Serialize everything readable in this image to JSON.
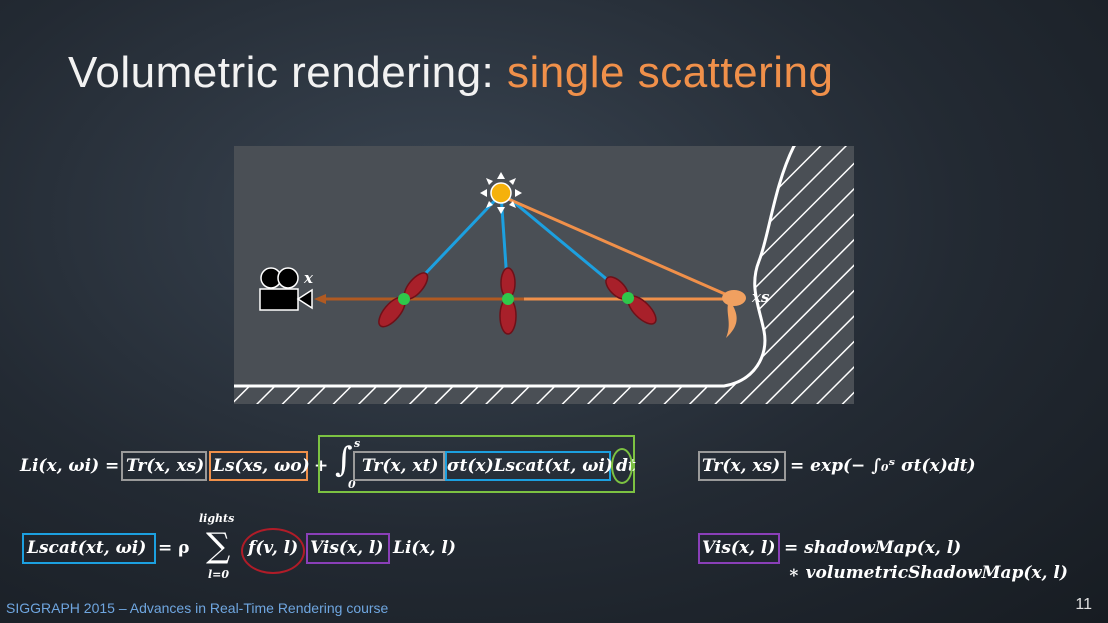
{
  "slide": {
    "title_main": "Volumetric rendering: ",
    "title_accent": "single scattering",
    "footer": "SIGGRAPH 2015 – Advances in Real-Time Rendering course",
    "page_number": "11"
  },
  "diagram": {
    "camera_label": "x",
    "surface_label": "xs"
  },
  "equations": {
    "li_lhs": "Li(x, ωi) =",
    "tr_x_xs": "Tr(x, xs)",
    "ls_xs_wo": "Ls(xs, ωo)",
    "plus": "+",
    "integral_upper": "s",
    "integral_lower": "0",
    "tr_x_xt": "Tr(x, xt)",
    "sigma_lscat": "σt(x)Lscat(xt, ωi)",
    "dt": "dt",
    "tr_def_lhs": "Tr(x, xs)",
    "tr_def_rhs": "= exp(− ∫₀ˢ σt(x)dt)",
    "lscat_lhs": "Lscat(xt, ωi)",
    "rho": "= ρ",
    "sum_upper": "lights",
    "sum_lower": "l=0",
    "f_vl": "f(v, l)",
    "vis_xl": "Vis(x, l)",
    "li_xl": "Li(x, l)",
    "vis_def_lhs": "Vis(x, l)",
    "vis_def_rhs": "= shadowMap(x, l)",
    "vis_def_rhs2": "∗ volumetricShadowMap(x, l)"
  },
  "colors": {
    "accent_orange": "#f0904a",
    "light_blue": "#1ca0e0",
    "green": "#7cc242",
    "purple": "#8a3fb8",
    "phase_red": "#b01c28",
    "gray": "#9a9a9a"
  }
}
